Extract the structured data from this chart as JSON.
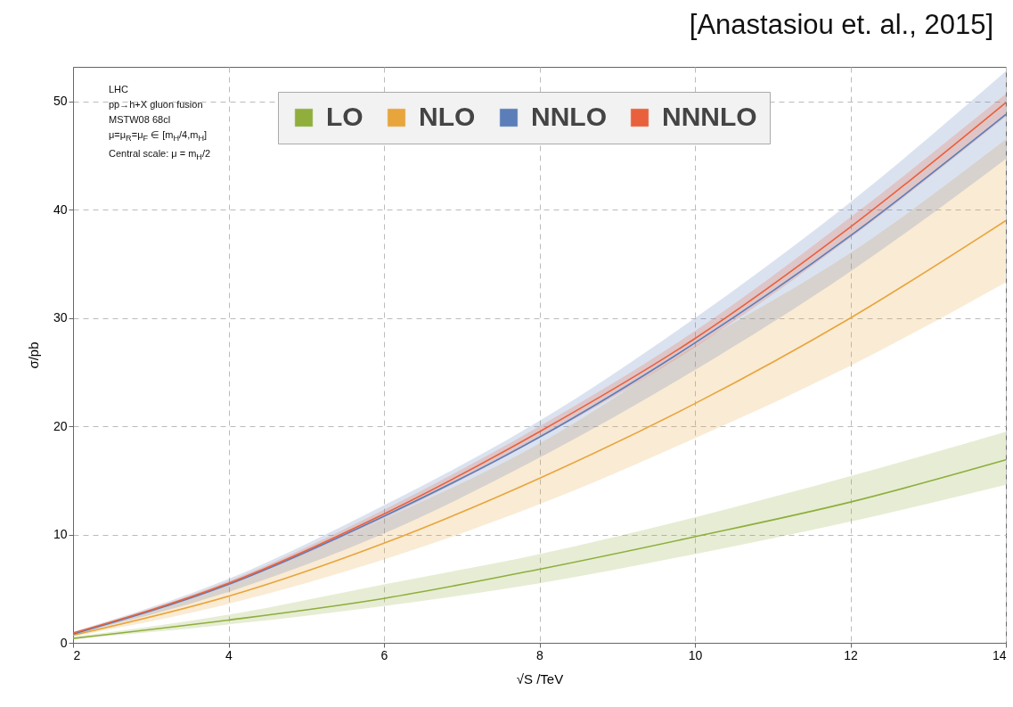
{
  "chart_data": {
    "type": "line",
    "xlabel": "√S /TeV",
    "ylabel": "σ/pb",
    "x": [
      2,
      4,
      6,
      8,
      10,
      12,
      14
    ],
    "series": [
      {
        "name": "LO",
        "color": "#8fae3c",
        "values": [
          0.4,
          2.1,
          4.1,
          6.8,
          9.8,
          13.0,
          16.9
        ],
        "lower": [
          0.35,
          1.7,
          3.4,
          5.5,
          8.2,
          11.2,
          14.6
        ],
        "upper": [
          0.55,
          2.6,
          5.4,
          8.2,
          11.6,
          15.4,
          19.5
        ]
      },
      {
        "name": "NLO",
        "color": "#e8a53c",
        "values": [
          0.7,
          4.3,
          9.2,
          15.2,
          22.1,
          30.0,
          39.0
        ],
        "lower": [
          0.6,
          3.6,
          7.7,
          12.8,
          18.9,
          25.6,
          33.3
        ],
        "upper": [
          0.8,
          5.3,
          11.45,
          18.4,
          27.4,
          36.0,
          46.5
        ]
      },
      {
        "name": "NNLO",
        "color": "#5b7db8",
        "values": [
          0.8,
          5.4,
          11.7,
          19.0,
          27.7,
          37.6,
          48.8
        ],
        "lower": [
          0.75,
          4.7,
          10.1,
          17.1,
          25.2,
          34.3,
          44.7
        ],
        "upper": [
          1.0,
          5.9,
          12.7,
          20.5,
          30.0,
          40.7,
          52.8
        ]
      },
      {
        "name": "NNNLO",
        "color": "#e8603c",
        "values": [
          0.9,
          5.5,
          11.9,
          19.5,
          28.1,
          38.4,
          49.9
        ],
        "lower": [
          0.85,
          5.3,
          11.5,
          18.9,
          27.3,
          37.4,
          48.6
        ],
        "upper": [
          0.95,
          5.7,
          12.3,
          20.0,
          28.8,
          39.3,
          50.7
        ]
      }
    ],
    "xlim": [
      2,
      14
    ],
    "ylim": [
      0,
      53.2
    ],
    "xticks": [
      2,
      4,
      6,
      8,
      10,
      12,
      14
    ],
    "yticks": [
      0,
      10,
      20,
      30,
      40,
      50
    ],
    "grid": true,
    "legend": "top",
    "marker": "none",
    "line_style": "solid",
    "annotations": [
      "LHC",
      "pp→h+X gluon fusion",
      "MSTW08 68cl",
      "μ=μ$_{R}$=μ$_{F}$ ∈ [m$_{H}$/4,m$_{H}$]",
      "Central scale: μ = m$_{H}$/2",
      "[Anastasiou et. al., 2015]"
    ]
  }
}
